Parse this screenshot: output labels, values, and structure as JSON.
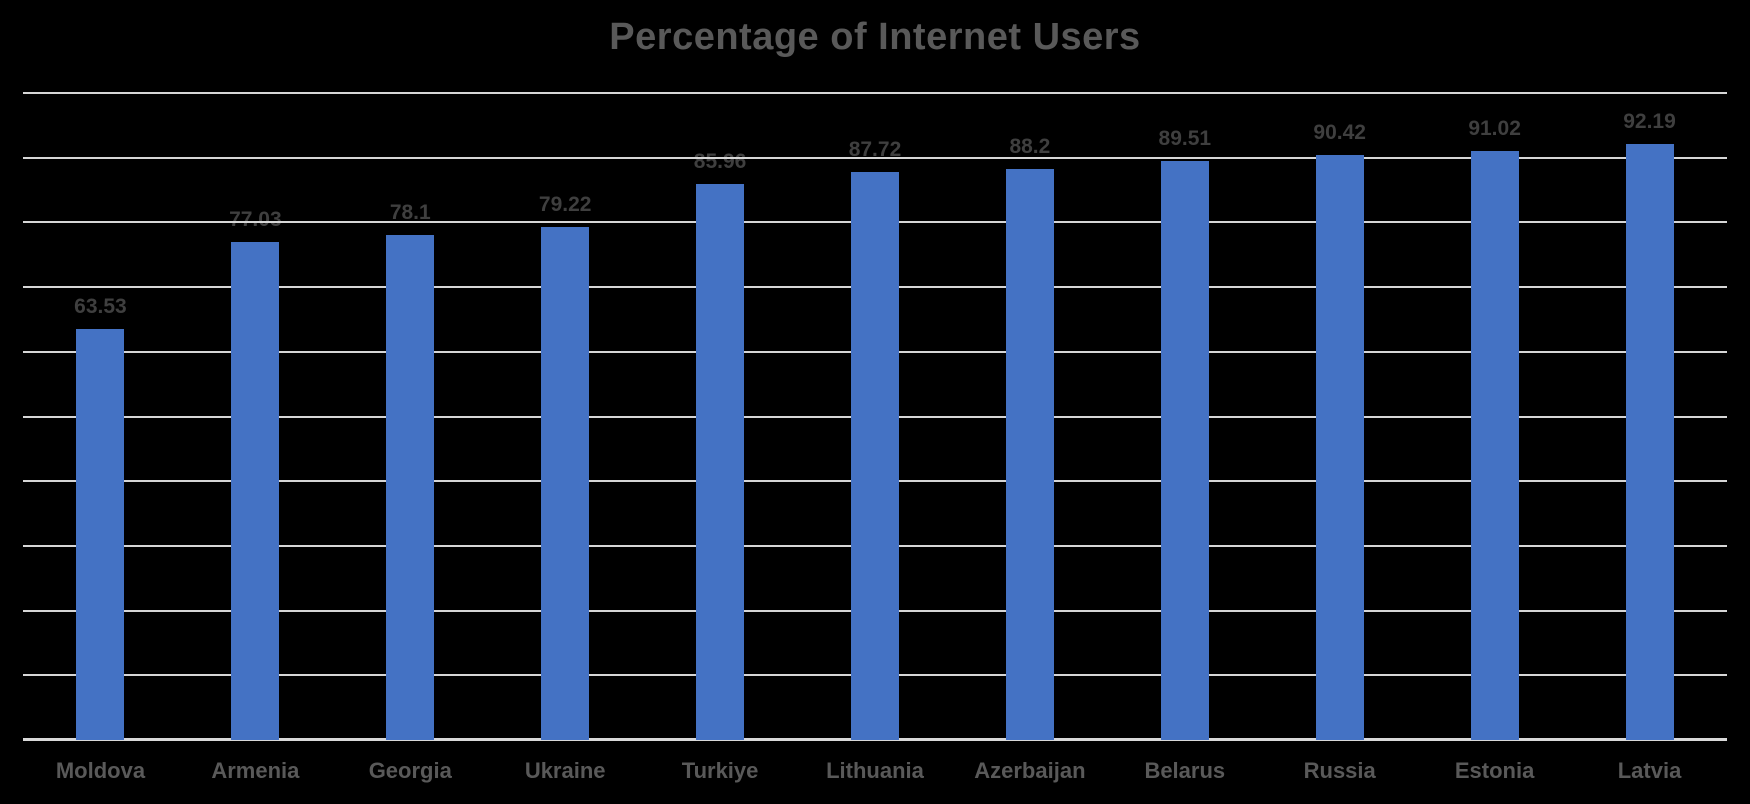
{
  "title": "Percentage of Internet Users",
  "chart_data": {
    "type": "bar",
    "title": "Percentage of Internet Users",
    "categories": [
      "Moldova",
      "Armenia",
      "Georgia",
      "Ukraine",
      "Turkiye",
      "Lithuania",
      "Azerbaijan",
      "Belarus",
      "Russia",
      "Estonia",
      "Latvia"
    ],
    "values": [
      63.53,
      77.03,
      78.1,
      79.22,
      85.96,
      87.72,
      88.2,
      89.51,
      90.42,
      91.02,
      92.19
    ],
    "data_labels": [
      "63.53",
      "77.03",
      "78.1",
      "79.22",
      "85.96",
      "87.72",
      "88.2",
      "89.51",
      "90.42",
      "91.02",
      "92.19"
    ],
    "xlabel": "",
    "ylabel": "",
    "ylim": [
      0,
      100
    ],
    "gridline_step": 10,
    "grid": "horizontal",
    "y_tick_labels_visible": false,
    "legend": "none",
    "colors": {
      "background": "#000000",
      "bar": "#4472C4",
      "gridline": "#D6D6D6",
      "axis_line": "#D9D9D9",
      "title_text": "#595959",
      "value_label": "#3F3F3F",
      "category_label": "#595959"
    }
  }
}
